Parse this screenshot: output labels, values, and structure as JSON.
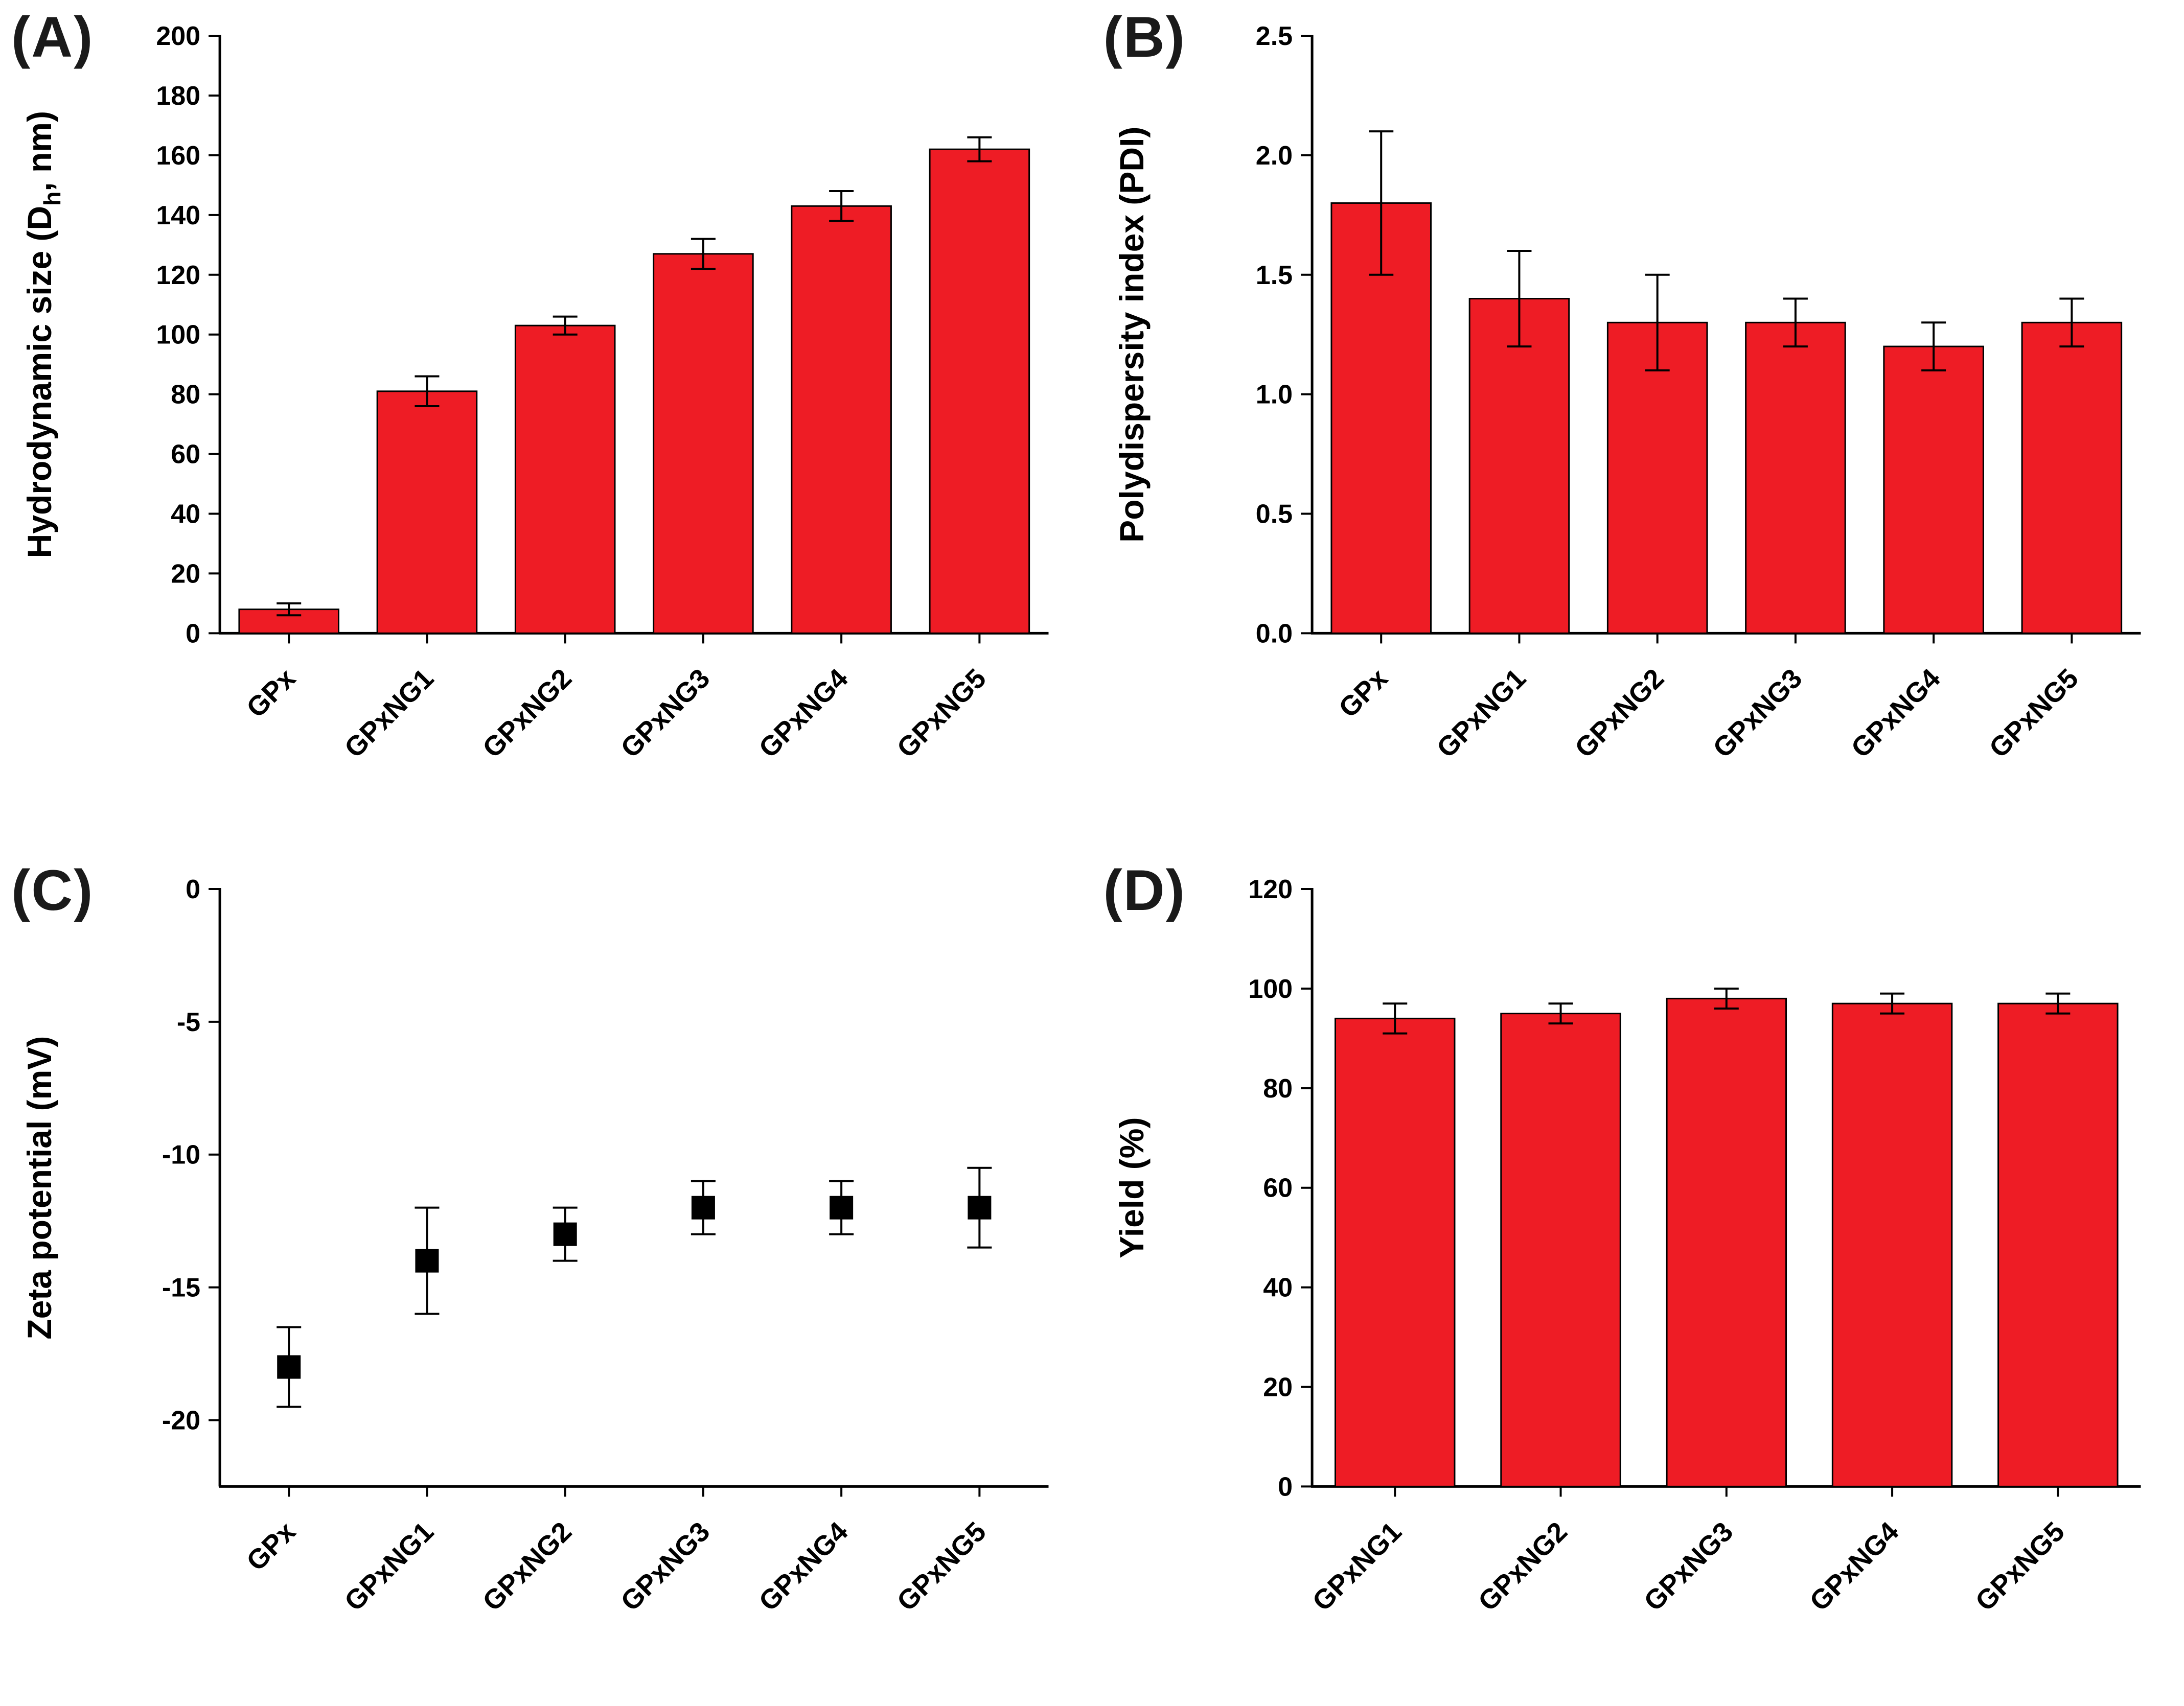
{
  "figure": {
    "background": "#ffffff",
    "bar_color": "#ee1c25",
    "axis_color": "#000000",
    "marker_color": "#000000",
    "grid": false,
    "legend": "none"
  },
  "chart_data": [
    {
      "panel": "(A)",
      "type": "bar",
      "categories": [
        "GPx",
        "GPxNG1",
        "GPxNG2",
        "GPxNG3",
        "GPxNG4",
        "GPxNG5"
      ],
      "values": [
        8,
        81,
        103,
        127,
        143,
        162
      ],
      "errors": [
        2,
        5,
        3,
        5,
        5,
        4
      ],
      "ylabel_parts": [
        {
          "t": "Hydrodynamic size (D"
        },
        {
          "t": "h",
          "sub": true
        },
        {
          "t": ", nm)"
        }
      ],
      "ylim": [
        0,
        200
      ],
      "ytick_values": [
        0,
        20,
        40,
        60,
        80,
        100,
        120,
        140,
        160,
        180,
        200
      ],
      "ytick_labels": [
        "0",
        "20",
        "40",
        "60",
        "80",
        "100",
        "120",
        "140",
        "160",
        "180",
        "200"
      ]
    },
    {
      "panel": "(B)",
      "type": "bar",
      "categories": [
        "GPx",
        "GPxNG1",
        "GPxNG2",
        "GPxNG3",
        "GPxNG4",
        "GPxNG5"
      ],
      "values": [
        1.8,
        1.4,
        1.3,
        1.3,
        1.2,
        1.3
      ],
      "errors": [
        0.3,
        0.2,
        0.2,
        0.1,
        0.1,
        0.1
      ],
      "ylabel_parts": [
        {
          "t": "Polydispersity index (PDI)"
        }
      ],
      "ylim": [
        0,
        2.5
      ],
      "ytick_values": [
        0,
        0.5,
        1.0,
        1.5,
        2.0,
        2.5
      ],
      "ytick_labels": [
        "0.0",
        "0.5",
        "1.0",
        "1.5",
        "2.0",
        "2.5"
      ]
    },
    {
      "panel": "(C)",
      "type": "scatter",
      "categories": [
        "GPx",
        "GPxNG1",
        "GPxNG2",
        "GPxNG3",
        "GPxNG4",
        "GPxNG5"
      ],
      "values": [
        -18,
        -14,
        -13,
        -12,
        -12,
        -12
      ],
      "errors": [
        1.5,
        2,
        1,
        1,
        1,
        1.5
      ],
      "ylabel_parts": [
        {
          "t": "Zeta potential (mV)"
        }
      ],
      "ylim": [
        -22.5,
        0
      ],
      "ytick_values": [
        0,
        -5,
        -10,
        -15,
        -20
      ],
      "ytick_labels": [
        "0",
        "-5",
        "-10",
        "-15",
        "-20"
      ]
    },
    {
      "panel": "(D)",
      "type": "bar",
      "categories": [
        "GPxNG1",
        "GPxNG2",
        "GPxNG3",
        "GPxNG4",
        "GPxNG5"
      ],
      "values": [
        94,
        95,
        98,
        97,
        97
      ],
      "errors": [
        3,
        2,
        2,
        2,
        2
      ],
      "ylabel_parts": [
        {
          "t": "Yield (%)"
        }
      ],
      "ylim": [
        0,
        120
      ],
      "ytick_values": [
        0,
        20,
        40,
        60,
        80,
        100,
        120
      ],
      "ytick_labels": [
        "0",
        "20",
        "40",
        "60",
        "80",
        "100",
        "120"
      ]
    }
  ]
}
